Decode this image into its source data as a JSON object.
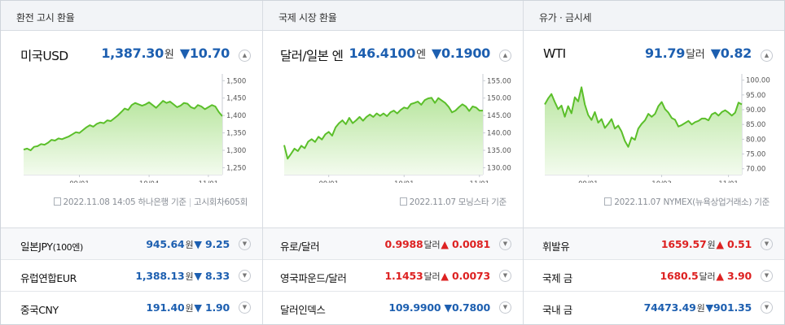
{
  "panels": [
    {
      "header": "환전 고시 환율",
      "main": {
        "name": "미국USD",
        "price": "1,387.30",
        "unit": "원",
        "arrow": "▼",
        "change": "10.70"
      },
      "y_ticks": [
        "1,500",
        "1,450",
        "1,400",
        "1,350",
        "1,300",
        "1,250"
      ],
      "x_ticks": [
        "09/01",
        "10/04",
        "11/01"
      ],
      "source": {
        "date": "2022.11.08 14:05",
        "provider": "하나은행",
        "suffix": "기준",
        "extra": "고시회차605회"
      },
      "rows": [
        {
          "name": "일본JPY",
          "sub": "(100엔)",
          "value": "945.64",
          "unit": "원",
          "arrow": "▼",
          "change": "9.25",
          "dir": "down"
        },
        {
          "name": "유럽연합EUR",
          "sub": "",
          "value": "1,388.13",
          "unit": "원",
          "arrow": "▼",
          "change": "8.33",
          "dir": "down"
        },
        {
          "name": "중국CNY",
          "sub": "",
          "value": "191.40",
          "unit": "원",
          "arrow": "▼",
          "change": "1.90",
          "dir": "down"
        }
      ]
    },
    {
      "header": "국제 시장 환율",
      "main": {
        "name": "달러/일본 엔",
        "price": "146.4100",
        "unit": "엔",
        "arrow": "▼",
        "change": "0.1900"
      },
      "y_ticks": [
        "155.00",
        "150.00",
        "145.00",
        "140.00",
        "135.00",
        "130.00"
      ],
      "x_ticks": [
        "09/01",
        "10/01",
        "11/01"
      ],
      "source": {
        "date": "2022.11.07",
        "provider": "모닝스타",
        "suffix": "기준",
        "extra": ""
      },
      "rows": [
        {
          "name": "유로/달러",
          "sub": "",
          "value": "0.9988",
          "unit": "달러",
          "arrow": "▲",
          "change": "0.0081",
          "dir": "up"
        },
        {
          "name": "영국파운드/달러",
          "sub": "",
          "value": "1.1453",
          "unit": "달러",
          "arrow": "▲",
          "change": "0.0073",
          "dir": "up"
        },
        {
          "name": "달러인덱스",
          "sub": "",
          "value": "109.9900",
          "unit": "",
          "arrow": "▼",
          "change": "0.7800",
          "dir": "down"
        }
      ]
    },
    {
      "header": "유가 · 금시세",
      "main": {
        "name": "WTI",
        "price": "91.79",
        "unit": "달러",
        "arrow": "▼",
        "change": "0.82"
      },
      "y_ticks": [
        "100.00",
        "95.00",
        "90.00",
        "85.00",
        "80.00",
        "75.00",
        "70.00"
      ],
      "x_ticks": [
        "09/01",
        "10/03",
        "11/01"
      ],
      "source": {
        "date": "2022.11.07",
        "provider": "NYMEX(뉴욕상업거래소)",
        "suffix": "기준",
        "extra": ""
      },
      "rows": [
        {
          "name": "휘발유",
          "sub": "",
          "value": "1659.57",
          "unit": "원",
          "arrow": "▲",
          "change": "0.51",
          "dir": "up"
        },
        {
          "name": "국제 금",
          "sub": "",
          "value": "1680.5",
          "unit": "달러",
          "arrow": "▲",
          "change": "3.90",
          "dir": "up"
        },
        {
          "name": "국내 금",
          "sub": "",
          "value": "74473.49",
          "unit": "원",
          "arrow": "▼",
          "change": "901.35",
          "dir": "down"
        }
      ]
    }
  ],
  "chart_data": [
    {
      "type": "area",
      "title": "미국USD",
      "ylim": [
        1230,
        1510
      ],
      "x_tick_index": [
        16,
        36,
        53
      ],
      "values": [
        1302,
        1305,
        1300,
        1310,
        1312,
        1318,
        1316,
        1322,
        1330,
        1328,
        1334,
        1332,
        1336,
        1340,
        1346,
        1352,
        1350,
        1358,
        1366,
        1372,
        1368,
        1376,
        1380,
        1378,
        1386,
        1384,
        1392,
        1400,
        1410,
        1420,
        1416,
        1430,
        1436,
        1432,
        1428,
        1432,
        1438,
        1430,
        1422,
        1432,
        1442,
        1436,
        1440,
        1432,
        1424,
        1428,
        1436,
        1434,
        1424,
        1420,
        1430,
        1426,
        1418,
        1424,
        1430,
        1426,
        1410,
        1398
      ],
      "grid": false
    },
    {
      "type": "area",
      "title": "달러/일본 엔",
      "ylim": [
        128,
        156
      ],
      "x_tick_index": [
        13,
        35,
        57
      ],
      "values": [
        136.5,
        132.6,
        134.0,
        135.5,
        134.8,
        136.3,
        135.6,
        137.5,
        138.2,
        137.4,
        138.9,
        138.1,
        139.6,
        140.3,
        139.2,
        141.6,
        142.8,
        143.6,
        142.5,
        144.3,
        142.8,
        143.6,
        144.6,
        143.5,
        144.6,
        145.3,
        144.6,
        145.6,
        144.9,
        145.6,
        144.8,
        145.9,
        146.4,
        145.6,
        146.6,
        147.3,
        147.0,
        148.3,
        148.6,
        149.0,
        148.1,
        149.4,
        149.9,
        150.1,
        148.6,
        150.0,
        149.3,
        148.6,
        147.5,
        145.9,
        146.4,
        147.4,
        148.2,
        147.6,
        146.3,
        147.6,
        147.3,
        146.4,
        146.4
      ],
      "grid": false
    },
    {
      "type": "area",
      "title": "WTI",
      "ylim": [
        68,
        101
      ],
      "x_tick_index": [
        13,
        35,
        55
      ],
      "values": [
        91.8,
        93.8,
        95.3,
        92.6,
        90.2,
        91.4,
        87.6,
        91.2,
        88.8,
        94.2,
        92.8,
        97.6,
        91.8,
        88.2,
        86.5,
        89.2,
        85.6,
        86.8,
        83.8,
        85.2,
        86.8,
        83.6,
        84.6,
        82.6,
        79.4,
        77.4,
        80.6,
        79.8,
        83.6,
        85.2,
        86.4,
        88.6,
        87.6,
        88.6,
        91.2,
        92.6,
        90.2,
        89.0,
        87.2,
        86.6,
        84.3,
        84.8,
        85.5,
        86.2,
        85.0,
        85.8,
        86.2,
        87.0,
        87.0,
        86.4,
        88.4,
        89.0,
        88.0,
        89.2,
        89.8,
        89.0,
        88.0,
        89.0,
        92.4,
        91.8
      ]
    }
  ]
}
